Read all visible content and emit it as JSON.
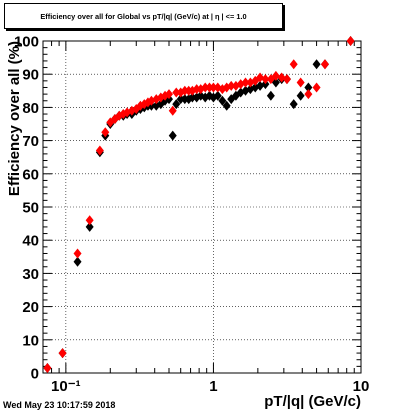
{
  "title": "Efficiency over all for Global vs pT/|q| (GeV/c) at | η | <= 1.0",
  "timestamp": "Wed May 23 10:17:59 2018",
  "chart_data": {
    "type": "scatter",
    "xlabel": "pT/|q| (GeV/c)",
    "ylabel": "Efficiency over all (%)",
    "xscale": "log",
    "xlim": [
      0.07,
      10
    ],
    "ylim": [
      0,
      100
    ],
    "x_tick_labels": [
      "10⁻¹",
      "1",
      "10"
    ],
    "y_tick_labels": [
      "0",
      "10",
      "20",
      "30",
      "40",
      "50",
      "60",
      "70",
      "80",
      "90",
      "100"
    ],
    "grid": true,
    "series": [
      {
        "marker": "diamond",
        "color": "#000000",
        "points": [
          [
            0.075,
            1.5
          ],
          [
            0.095,
            6
          ],
          [
            0.12,
            33.5
          ],
          [
            0.145,
            44
          ],
          [
            0.17,
            66.5
          ],
          [
            0.185,
            71.5
          ],
          [
            0.2,
            75
          ],
          [
            0.215,
            76.5
          ],
          [
            0.23,
            77.5
          ],
          [
            0.245,
            77.5
          ],
          [
            0.26,
            78
          ],
          [
            0.28,
            78
          ],
          [
            0.3,
            79
          ],
          [
            0.32,
            79.5
          ],
          [
            0.34,
            80
          ],
          [
            0.36,
            80.5
          ],
          [
            0.38,
            80.5
          ],
          [
            0.41,
            80.5
          ],
          [
            0.44,
            81
          ],
          [
            0.47,
            82
          ],
          [
            0.5,
            82.5
          ],
          [
            0.53,
            71.5
          ],
          [
            0.56,
            81
          ],
          [
            0.6,
            82.5
          ],
          [
            0.64,
            82.5
          ],
          [
            0.68,
            82.5
          ],
          [
            0.72,
            83
          ],
          [
            0.77,
            83
          ],
          [
            0.82,
            83.5
          ],
          [
            0.88,
            83
          ],
          [
            0.94,
            83.5
          ],
          [
            1.0,
            83
          ],
          [
            1.07,
            83.5
          ],
          [
            1.15,
            82
          ],
          [
            1.23,
            80.5
          ],
          [
            1.32,
            82.5
          ],
          [
            1.42,
            83.5
          ],
          [
            1.53,
            84.5
          ],
          [
            1.65,
            85
          ],
          [
            1.78,
            85.5
          ],
          [
            1.92,
            86
          ],
          [
            2.07,
            86.5
          ],
          [
            2.25,
            87
          ],
          [
            2.45,
            83.5
          ],
          [
            2.65,
            87.5
          ],
          [
            2.9,
            88.5
          ],
          [
            3.15,
            88.5
          ],
          [
            3.5,
            81
          ],
          [
            3.9,
            83.5
          ],
          [
            4.4,
            86
          ],
          [
            5.0,
            93
          ],
          [
            5.7,
            93
          ],
          [
            8.5,
            100
          ]
        ]
      },
      {
        "marker": "diamond",
        "color": "#ff0000",
        "points": [
          [
            0.075,
            1.5
          ],
          [
            0.095,
            6
          ],
          [
            0.12,
            36
          ],
          [
            0.145,
            46
          ],
          [
            0.17,
            67
          ],
          [
            0.185,
            72.5
          ],
          [
            0.2,
            75.5
          ],
          [
            0.215,
            76.5
          ],
          [
            0.23,
            77.5
          ],
          [
            0.245,
            78
          ],
          [
            0.26,
            78.5
          ],
          [
            0.28,
            79
          ],
          [
            0.3,
            79.5
          ],
          [
            0.32,
            80.5
          ],
          [
            0.34,
            81
          ],
          [
            0.36,
            81.5
          ],
          [
            0.38,
            82
          ],
          [
            0.41,
            82.5
          ],
          [
            0.44,
            83
          ],
          [
            0.47,
            83.5
          ],
          [
            0.5,
            84
          ],
          [
            0.53,
            79
          ],
          [
            0.56,
            84.5
          ],
          [
            0.6,
            84.5
          ],
          [
            0.64,
            85
          ],
          [
            0.68,
            85
          ],
          [
            0.72,
            85
          ],
          [
            0.77,
            85.5
          ],
          [
            0.82,
            85.5
          ],
          [
            0.88,
            86
          ],
          [
            0.94,
            86
          ],
          [
            1.0,
            86
          ],
          [
            1.07,
            86
          ],
          [
            1.15,
            85.5
          ],
          [
            1.23,
            86
          ],
          [
            1.32,
            86.5
          ],
          [
            1.42,
            86.5
          ],
          [
            1.53,
            87
          ],
          [
            1.65,
            87.5
          ],
          [
            1.78,
            87.5
          ],
          [
            1.92,
            88
          ],
          [
            2.07,
            89
          ],
          [
            2.25,
            88.5
          ],
          [
            2.45,
            88.5
          ],
          [
            2.65,
            89.5
          ],
          [
            2.9,
            89
          ],
          [
            3.15,
            88.5
          ],
          [
            3.5,
            93
          ],
          [
            3.9,
            87.5
          ],
          [
            4.4,
            84
          ],
          [
            5.0,
            86
          ],
          [
            5.7,
            93
          ],
          [
            8.5,
            100
          ]
        ]
      }
    ]
  }
}
